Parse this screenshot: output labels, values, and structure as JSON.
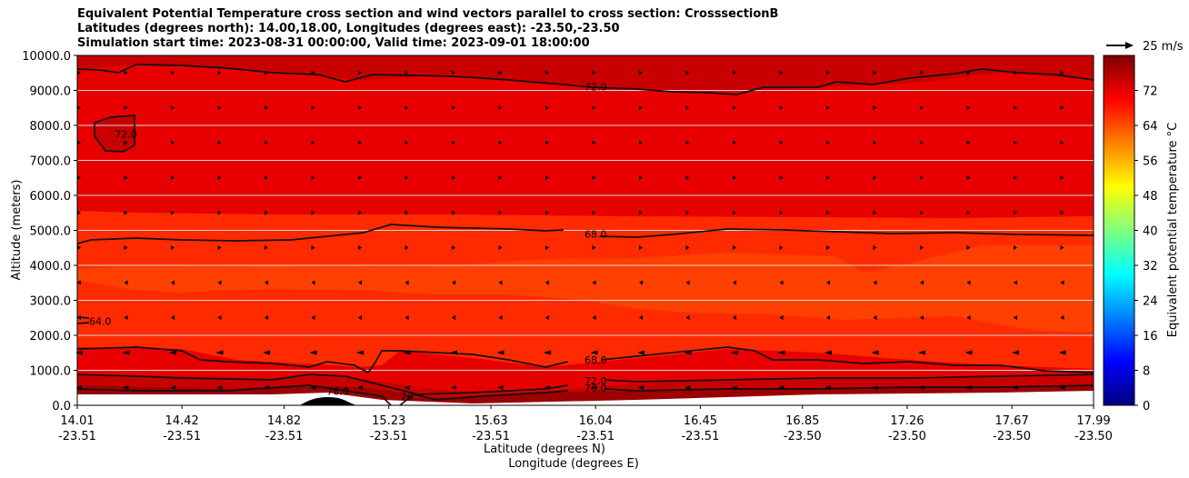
{
  "title_lines": [
    "Equivalent Potential Temperature cross section and wind vectors parallel to cross section: CrosssectionB",
    "Latitudes (degrees north): 14.00,18.00, Longitudes (degrees east): -23.50,-23.50",
    "Simulation start time: 2023-08-31 00:00:00, Valid time: 2023-09-01 18:00:00"
  ],
  "chart_data": {
    "type": "contour",
    "ylabel": "Altitude (meters)",
    "xlabel_lat": "Latitude (degrees N)",
    "xlabel_lon": "Longitude (degrees E)",
    "ylim": [
      0,
      10000
    ],
    "y_ticks": [
      "0.0",
      "1000.0",
      "2000.0",
      "3000.0",
      "4000.0",
      "5000.0",
      "6000.0",
      "7000.0",
      "8000.0",
      "9000.0",
      "10000.0"
    ],
    "x_ticks": [
      {
        "lat": "14.01",
        "lon": "-23.51"
      },
      {
        "lat": "14.42",
        "lon": "-23.51"
      },
      {
        "lat": "14.82",
        "lon": "-23.51"
      },
      {
        "lat": "15.23",
        "lon": "-23.51"
      },
      {
        "lat": "15.63",
        "lon": "-23.51"
      },
      {
        "lat": "16.04",
        "lon": "-23.51"
      },
      {
        "lat": "16.45",
        "lon": "-23.51"
      },
      {
        "lat": "16.85",
        "lon": "-23.50"
      },
      {
        "lat": "17.26",
        "lon": "-23.50"
      },
      {
        "lat": "17.67",
        "lon": "-23.50"
      },
      {
        "lat": "17.99",
        "lon": "-23.50"
      }
    ],
    "colorbar": {
      "label": "Equivalent potential temperature $^\\circ$C",
      "label_display": "Equivalent potential temperature °C",
      "range": [
        0,
        80
      ],
      "ticks": [
        "0",
        "8",
        "16",
        "24",
        "32",
        "40",
        "48",
        "56",
        "64",
        "72"
      ]
    },
    "wind_key": "25 m/s",
    "contour_labels": [
      {
        "text": "72.0",
        "lat": 16.04,
        "alt": 9100
      },
      {
        "text": "72.0",
        "lat": 14.2,
        "alt": 7750
      },
      {
        "text": "68.0",
        "lat": 16.04,
        "alt": 4900
      },
      {
        "text": "64.0",
        "lat": 14.1,
        "alt": 2400
      },
      {
        "text": "68.0",
        "lat": 16.04,
        "alt": 1300
      },
      {
        "text": "72.0",
        "lat": 16.04,
        "alt": 700
      },
      {
        "text": "76.0",
        "lat": 16.04,
        "alt": 500
      },
      {
        "text": "76.0",
        "lat": 15.03,
        "alt": 400
      },
      {
        "text": "76",
        "lat": 15.3,
        "alt": 250
      }
    ],
    "grid": "y-lines"
  }
}
